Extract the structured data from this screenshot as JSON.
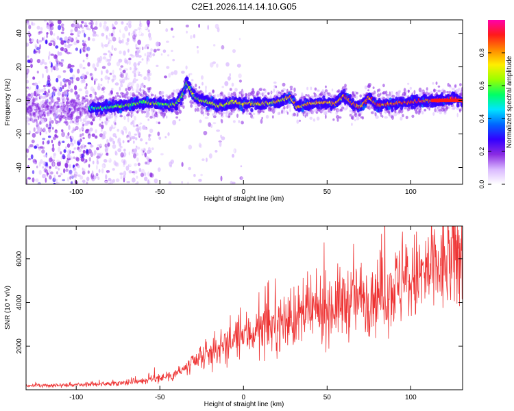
{
  "title": "C2E1.2026.114.14.10.G05",
  "chart_data": [
    {
      "type": "heatmap",
      "title": "C2E1.2026.114.14.10.G05",
      "xlabel": "Height of straight line (km)",
      "ylabel": "Frequency (Hz)",
      "xlim": [
        -130,
        131
      ],
      "ylim": [
        -50,
        48
      ],
      "xticks": [
        -100,
        -50,
        0,
        50,
        100
      ],
      "yticks": [
        -40,
        -20,
        0,
        20,
        40
      ],
      "colorbar": {
        "label": "Normalized spectral amplitude",
        "range": [
          0,
          1
        ],
        "ticks": [
          0.0,
          0.2,
          0.4,
          0.6,
          0.8
        ],
        "colors": [
          "#ffffff",
          "#d9b8ff",
          "#8a2be2",
          "#3300ff",
          "#0066ff",
          "#00e5ff",
          "#00ff66",
          "#99ff00",
          "#ffee00",
          "#ff8800",
          "#ff1a1a",
          "#ff00aa"
        ]
      },
      "ridge": {
        "x": [
          -92,
          -80,
          -70,
          -60,
          -50,
          -45,
          -40,
          -36,
          -34,
          -32,
          -30,
          -27,
          -22,
          -15,
          -10,
          -5,
          0,
          10,
          20,
          28,
          32,
          40,
          50,
          55,
          60,
          65,
          70,
          75,
          80,
          90,
          100,
          110,
          120,
          125,
          131
        ],
        "y": [
          -5,
          -4,
          -3,
          -1,
          -2,
          -3,
          -2,
          4,
          11,
          7,
          3,
          1,
          -1,
          -3,
          -2,
          -1,
          -2,
          -2,
          -1,
          2,
          -4,
          -2,
          -1,
          -2,
          3,
          -2,
          -4,
          2,
          -3,
          -2,
          -1,
          0,
          0,
          2,
          0
        ]
      },
      "noise_region_x": [
        -130,
        -60
      ]
    },
    {
      "type": "line",
      "title": "",
      "xlabel": "Height of straight line (km)",
      "ylabel": "SNR (10 * v/v)",
      "xlim": [
        -130,
        131
      ],
      "ylim": [
        0,
        7500
      ],
      "xticks": [
        -100,
        -50,
        0,
        50,
        100
      ],
      "yticks": [
        2000,
        4000,
        6000
      ],
      "series": [
        {
          "name": "SNR",
          "color": "#ee3333",
          "trend_x": [
            -130,
            -100,
            -80,
            -60,
            -45,
            -35,
            -25,
            -15,
            0,
            20,
            40,
            60,
            80,
            100,
            120,
            131
          ],
          "trend_y": [
            180,
            220,
            280,
            420,
            620,
            950,
            1400,
            1900,
            2500,
            3000,
            3500,
            4000,
            4400,
            5000,
            5700,
            6200
          ]
        }
      ]
    }
  ]
}
